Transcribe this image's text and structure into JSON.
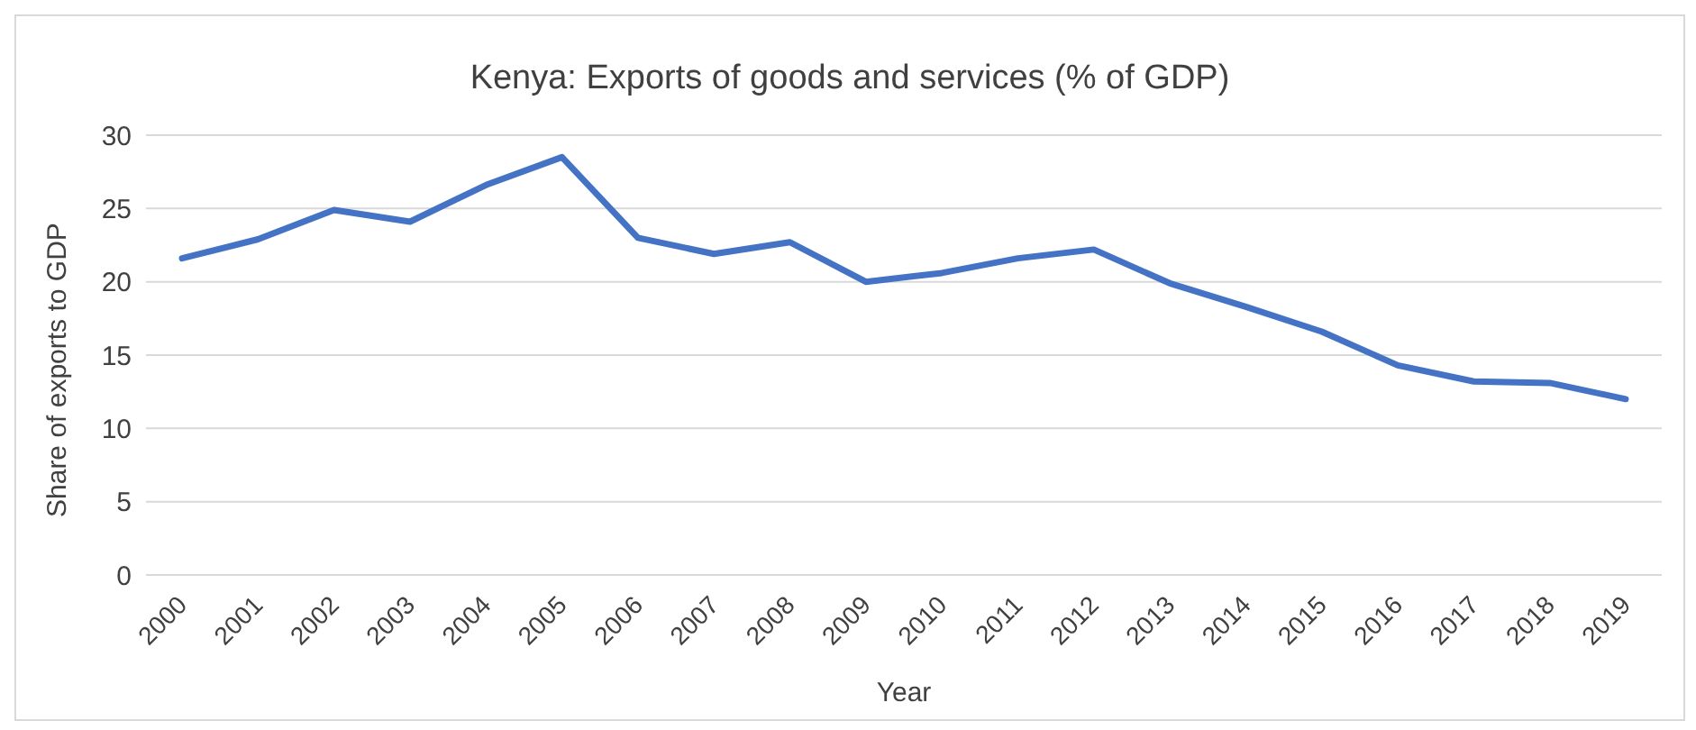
{
  "chart_data": {
    "type": "line",
    "title": "Kenya: Exports of goods and services (% of GDP)",
    "xlabel": "Year",
    "ylabel": "Share of exports to GDP",
    "categories": [
      "2000",
      "2001",
      "2002",
      "2003",
      "2004",
      "2005",
      "2006",
      "2007",
      "2008",
      "2009",
      "2010",
      "2011",
      "2012",
      "2013",
      "2014",
      "2015",
      "2016",
      "2017",
      "2018",
      "2019"
    ],
    "series": [
      {
        "color": "#4472c4",
        "values": [
          21.6,
          22.9,
          24.9,
          24.1,
          26.6,
          28.5,
          23.0,
          21.9,
          22.7,
          20.0,
          20.6,
          21.6,
          22.2,
          19.9,
          18.3,
          16.6,
          14.3,
          13.2,
          13.1,
          12.0
        ]
      }
    ],
    "ylim": [
      0,
      30
    ],
    "yticks": [
      0,
      5,
      10,
      15,
      20,
      25,
      30
    ],
    "grid": "y",
    "legend": false,
    "marker": "none",
    "line_style": "solid"
  }
}
